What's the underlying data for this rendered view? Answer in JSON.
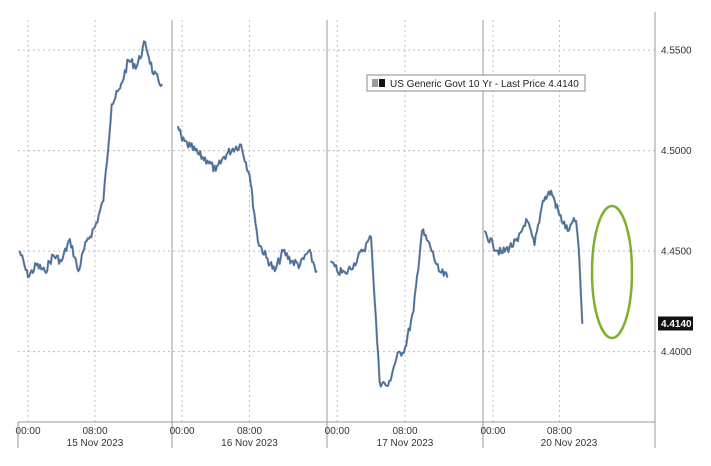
{
  "chart_data": {
    "type": "line",
    "series": [
      {
        "name": "US Generic Govt 10 Yr - Last Price 4.4140",
        "color": "#3a6ea5",
        "segments": [
          {
            "day": "15 Nov 2023",
            "x": [
              "15 Nov 2023 -01:00",
              "15 Nov 2023 00:00",
              "15 Nov 2023 01:00",
              "15 Nov 2023 02:00",
              "15 Nov 2023 03:00",
              "15 Nov 2023 04:00",
              "15 Nov 2023 05:00",
              "15 Nov 2023 06:00",
              "15 Nov 2023 07:00",
              "15 Nov 2023 08:00",
              "15 Nov 2023 09:00",
              "15 Nov 2023 10:00",
              "15 Nov 2023 11:00",
              "15 Nov 2023 12:00",
              "15 Nov 2023 13:00",
              "15 Nov 2023 14:00",
              "15 Nov 2023 15:00",
              "15 Nov 2023 16:00"
            ],
            "y": [
              4.45,
              4.437,
              4.443,
              4.44,
              4.448,
              4.445,
              4.456,
              4.44,
              4.455,
              4.462,
              4.475,
              4.523,
              4.531,
              4.545,
              4.542,
              4.554,
              4.538,
              4.533
            ]
          },
          {
            "day": "16 Nov 2023",
            "x": [
              "16 Nov 2023 -00:30",
              "16 Nov 2023 00:00",
              "16 Nov 2023 01:00",
              "16 Nov 2023 02:00",
              "16 Nov 2023 03:00",
              "16 Nov 2023 04:00",
              "16 Nov 2023 05:00",
              "16 Nov 2023 06:00",
              "16 Nov 2023 07:00",
              "16 Nov 2023 08:00",
              "16 Nov 2023 09:00",
              "16 Nov 2023 10:00",
              "16 Nov 2023 11:00",
              "16 Nov 2023 12:00",
              "16 Nov 2023 13:00",
              "16 Nov 2023 14:00",
              "16 Nov 2023 15:00",
              "16 Nov 2023 16:00"
            ],
            "y": [
              4.512,
              4.505,
              4.502,
              4.498,
              4.495,
              4.49,
              4.497,
              4.501,
              4.503,
              4.488,
              4.455,
              4.447,
              4.44,
              4.45,
              4.445,
              4.443,
              4.45,
              4.44
            ]
          },
          {
            "day": "17 Nov 2023",
            "x": [
              "17 Nov 2023 -00:45",
              "17 Nov 2023 00:00",
              "17 Nov 2023 01:00",
              "17 Nov 2023 02:00",
              "17 Nov 2023 03:00",
              "17 Nov 2023 04:00",
              "17 Nov 2023 05:00",
              "17 Nov 2023 06:00",
              "17 Nov 2023 07:00",
              "17 Nov 2023 08:00",
              "17 Nov 2023 09:00",
              "17 Nov 2023 10:00",
              "17 Nov 2023 11:00",
              "17 Nov 2023 12:00",
              "17 Nov 2023 13:00"
            ],
            "y": [
              4.445,
              4.44,
              4.439,
              4.444,
              4.45,
              4.457,
              4.385,
              4.383,
              4.397,
              4.402,
              4.42,
              4.46,
              4.452,
              4.44,
              4.437
            ]
          },
          {
            "day": "20 Nov 2023",
            "x": [
              "20 Nov 2023 -01:00",
              "20 Nov 2023 00:00",
              "20 Nov 2023 01:00",
              "20 Nov 2023 02:00",
              "20 Nov 2023 03:00",
              "20 Nov 2023 04:00",
              "20 Nov 2023 05:00",
              "20 Nov 2023 06:00",
              "20 Nov 2023 07:00",
              "20 Nov 2023 08:00",
              "20 Nov 2023 09:00",
              "20 Nov 2023 09:20",
              "20 Nov 2023 10:00",
              "20 Nov 2023 10:20",
              "20 Nov 2023 10:45"
            ],
            "y": [
              4.46,
              4.453,
              4.449,
              4.452,
              4.455,
              4.466,
              4.453,
              4.475,
              4.48,
              4.468,
              4.46,
              4.463,
              4.465,
              4.451,
              4.414
            ]
          }
        ]
      }
    ],
    "y_ticks": [
      "4.5500",
      "4.5000",
      "4.4500",
      "4.4000"
    ],
    "ylim": [
      4.365,
      4.565
    ],
    "days": [
      {
        "label": "15 Nov 2023",
        "ticks": [
          "00:00",
          "08:00"
        ]
      },
      {
        "label": "16 Nov 2023",
        "ticks": [
          "00:00",
          "08:00"
        ]
      },
      {
        "label": "17 Nov 2023",
        "ticks": [
          "00:00",
          "08:00"
        ]
      },
      {
        "label": "20 Nov 2023",
        "ticks": [
          "00:00",
          "08:00"
        ]
      }
    ],
    "legend": {
      "text": "US Generic Govt 10 Yr - Last Price 4.4140",
      "placement": "top-center"
    },
    "last_price_label": "4.4140",
    "last_price": 4.414,
    "grid": true,
    "annotation": {
      "type": "ellipse",
      "color": "#7fb02e",
      "around": "final drop on 20 Nov 2023"
    },
    "colors": {
      "line": "#3a6ea5",
      "line_dark": "#1f2f4a",
      "grid": "#bdbdbd",
      "last_label_bg": "#111111"
    }
  }
}
